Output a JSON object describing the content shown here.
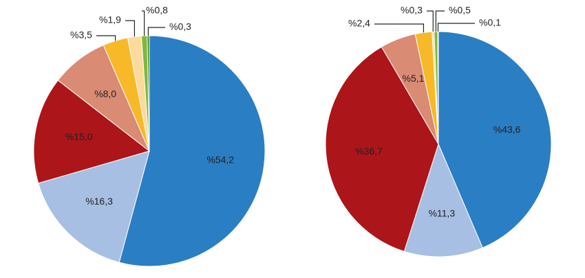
{
  "chart_data": [
    {
      "type": "pie",
      "values": [
        54.2,
        16.3,
        15.0,
        8.0,
        3.5,
        1.9,
        0.8,
        0.3
      ],
      "value_labels": [
        "%54,2",
        "%16,3",
        "%15,0",
        "%8,0",
        "%3,5",
        "%1,9",
        "%0,8",
        "%0,3"
      ],
      "colors": [
        "#2a7ec4",
        "#a6bfe3",
        "#ac1519",
        "#d98b73",
        "#f7b928",
        "#fbdb9b",
        "#7fb83a",
        "#3f8a2a"
      ]
    },
    {
      "type": "pie",
      "values": [
        43.6,
        11.3,
        36.7,
        5.1,
        2.4,
        0.3,
        0.5,
        0.1
      ],
      "value_labels": [
        "%43,6",
        "%11,3",
        "%36,7",
        "%5,1",
        "%2,4",
        "%0,3",
        "%0,5",
        "%0,1"
      ],
      "colors": [
        "#2a7ec4",
        "#a6bfe3",
        "#ac1519",
        "#d98b73",
        "#f7b928",
        "#fbdb9b",
        "#7fb83a",
        "#3f8a2a"
      ]
    }
  ]
}
